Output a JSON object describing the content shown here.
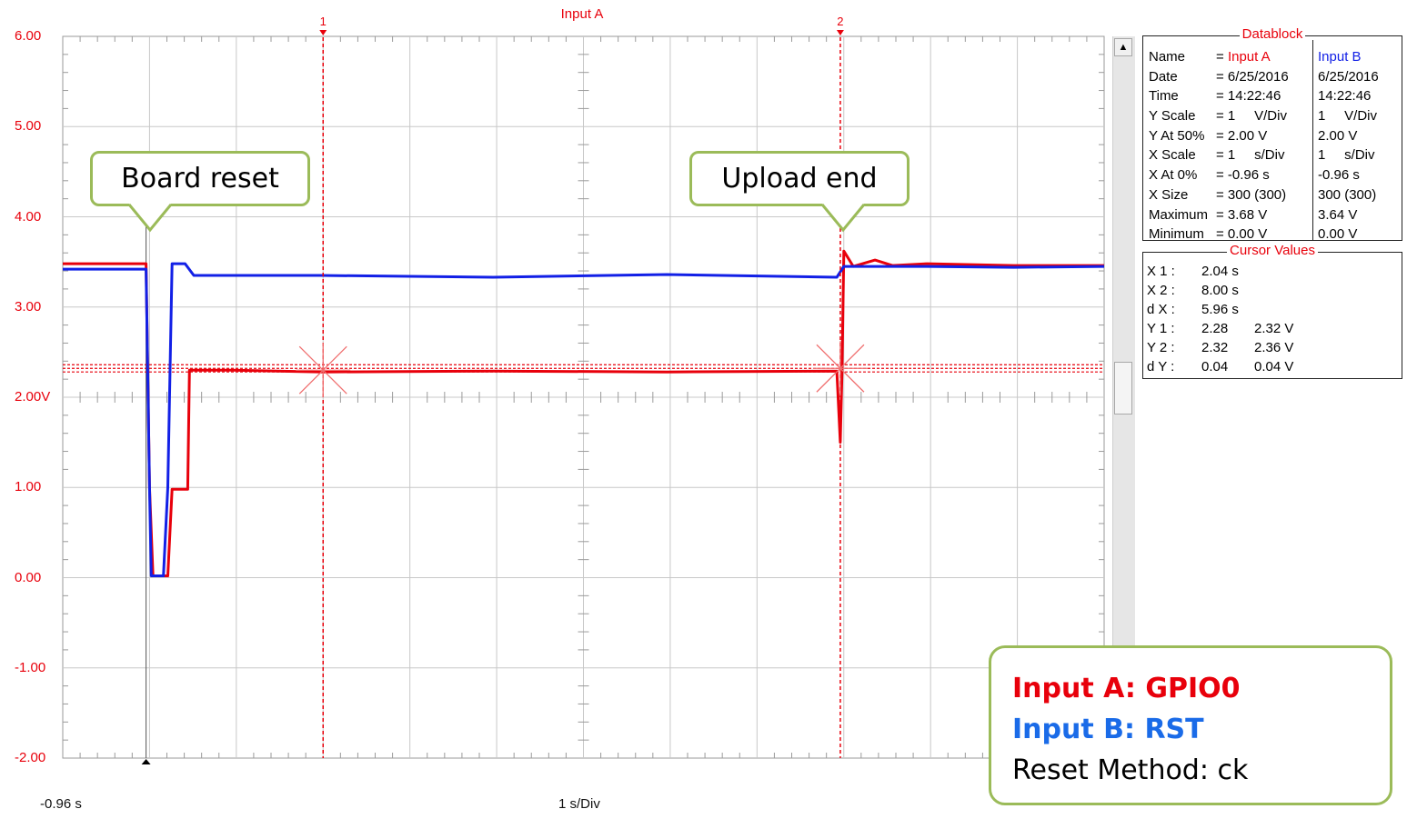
{
  "window": {
    "input_title": "Input A"
  },
  "chart_data": {
    "type": "line",
    "xlim": [
      -0.96,
      11.04
    ],
    "ylim": [
      -2,
      6
    ],
    "x_scale_label": "1 s/Div",
    "x_start_label": "-0.96 s",
    "yticks": [
      "6.00",
      "5.00",
      "4.00",
      "3.00",
      "2.00V",
      "1.00",
      "0.00",
      "-1.00",
      "-2.00"
    ],
    "ytick_values": [
      6,
      5,
      4,
      3,
      2,
      1,
      0,
      -1,
      -2
    ],
    "grid": true,
    "series": [
      {
        "name": "Input A",
        "color": "#e8000b",
        "points": [
          [
            -0.96,
            3.48
          ],
          [
            0.0,
            3.48
          ],
          [
            0.04,
            1.0
          ],
          [
            0.08,
            0.02
          ],
          [
            0.25,
            0.02
          ],
          [
            0.3,
            0.98
          ],
          [
            0.48,
            0.98
          ],
          [
            0.5,
            2.3
          ],
          [
            1.0,
            2.3
          ],
          [
            2.04,
            2.28
          ],
          [
            4.0,
            2.29
          ],
          [
            6.0,
            2.28
          ],
          [
            7.96,
            2.29
          ],
          [
            8.0,
            1.5
          ],
          [
            8.02,
            2.28
          ],
          [
            8.04,
            3.62
          ],
          [
            8.15,
            3.45
          ],
          [
            8.4,
            3.52
          ],
          [
            8.6,
            3.46
          ],
          [
            9.0,
            3.48
          ],
          [
            10.0,
            3.46
          ],
          [
            11.04,
            3.46
          ]
        ]
      },
      {
        "name": "Input B",
        "color": "#1220e6",
        "points": [
          [
            -0.96,
            3.42
          ],
          [
            0.0,
            3.42
          ],
          [
            0.04,
            1.0
          ],
          [
            0.06,
            0.02
          ],
          [
            0.2,
            0.02
          ],
          [
            0.25,
            1.0
          ],
          [
            0.3,
            3.48
          ],
          [
            0.45,
            3.48
          ],
          [
            0.55,
            3.35
          ],
          [
            2.0,
            3.35
          ],
          [
            4.0,
            3.33
          ],
          [
            6.0,
            3.36
          ],
          [
            7.96,
            3.33
          ],
          [
            8.04,
            3.45
          ],
          [
            9.0,
            3.45
          ],
          [
            10.0,
            3.44
          ],
          [
            11.04,
            3.45
          ]
        ]
      }
    ],
    "cursors": [
      {
        "label": "1",
        "x": 2.04,
        "y": 2.3
      },
      {
        "label": "2",
        "x": 8.0,
        "y": 2.32
      }
    ],
    "cursor_hlines": [
      2.28,
      2.32,
      2.36
    ],
    "trigger_x": 0.0,
    "annotations": [
      {
        "text": "Board reset",
        "x": 0.0,
        "y": 4.0
      },
      {
        "text": "Upload end",
        "x": 8.0,
        "y": 4.0
      }
    ]
  },
  "datablock": {
    "title": "Datablock",
    "labels": [
      "Name",
      "Date",
      "Time",
      "Y Scale",
      "Y At 50%",
      "X Scale",
      "X At 0%",
      "X Size",
      "Maximum",
      "Minimum"
    ],
    "input_a": [
      "= Input A",
      "= 6/25/2016",
      "= 14:22:46",
      "= 1     V/Div",
      "= 2.00 V",
      "= 1     s/Div",
      "= -0.96 s",
      "= 300 (300)",
      "= 3.68 V",
      "= 0.00 V"
    ],
    "input_b": [
      "Input B",
      "6/25/2016",
      "14:22:46",
      "1     V/Div",
      "2.00 V",
      "1     s/Div",
      "-0.96 s",
      "300 (300)",
      "3.64 V",
      "0.00 V"
    ]
  },
  "cursor_values": {
    "title": "Cursor Values",
    "rows": [
      {
        "label": "X 1 :",
        "a": "2.04 s",
        "b": ""
      },
      {
        "label": "X 2 :",
        "a": "8.00 s",
        "b": ""
      },
      {
        "label": "d X :",
        "a": "5.96 s",
        "b": ""
      },
      {
        "label": "Y 1 :",
        "a": "2.28",
        "b": "2.32 V"
      },
      {
        "label": "Y 2 :",
        "a": "2.32",
        "b": "2.36 V"
      },
      {
        "label": "d Y :",
        "a": "0.04",
        "b": "0.04 V"
      }
    ]
  },
  "callouts": {
    "board_reset": "Board reset",
    "upload_end": "Upload end"
  },
  "legend": {
    "input_a": "Input A: GPIO0",
    "input_b": "Input B: RST",
    "method": "Reset Method: ck"
  },
  "colors": {
    "input_a": "#e8000b",
    "input_b": "#1220e6",
    "callout_border": "#9bbb59"
  }
}
